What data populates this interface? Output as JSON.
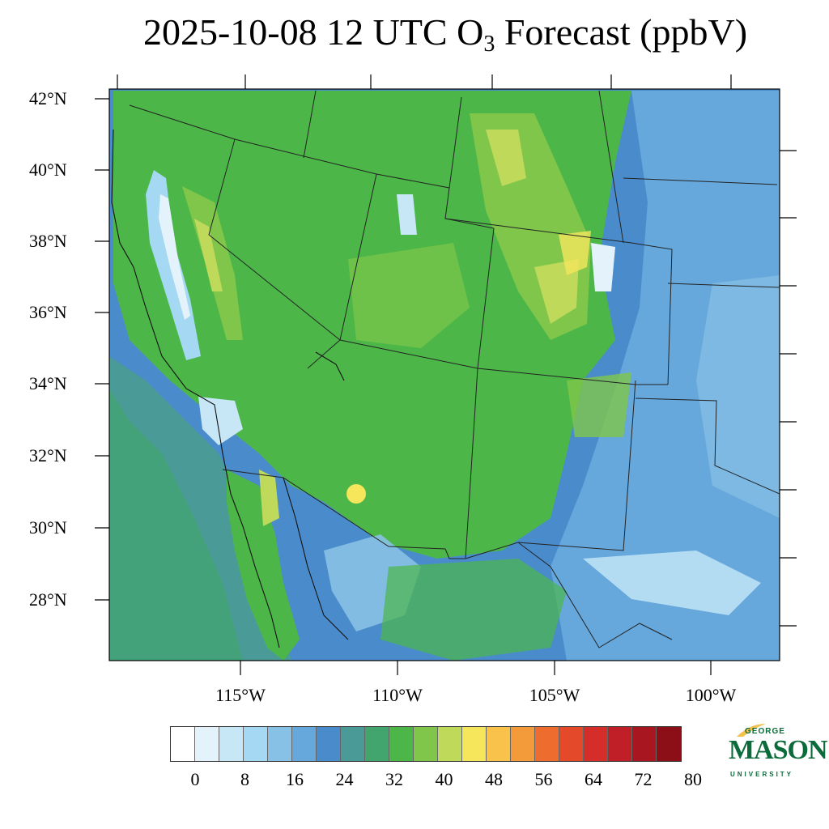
{
  "title": {
    "prefix": "2025-10-08 12 UTC O",
    "subscript": "3",
    "suffix": " Forecast (ppbV)"
  },
  "map": {
    "latitude_labels": [
      "42°N",
      "40°N",
      "38°N",
      "36°N",
      "34°N",
      "32°N",
      "30°N",
      "28°N"
    ],
    "longitude_labels": [
      "115°W",
      "110°W",
      "105°W",
      "100°W"
    ]
  },
  "colorbar": {
    "labels": [
      "0",
      "8",
      "16",
      "24",
      "32",
      "40",
      "48",
      "56",
      "64",
      "72",
      "80"
    ],
    "colors": [
      "#ffffff",
      "#e4f3fb",
      "#c7e7f7",
      "#a5d9f3",
      "#88c1e6",
      "#66a8dc",
      "#4a8ccb",
      "#4a9b98",
      "#41a56d",
      "#4cb748",
      "#7fc64a",
      "#bfd95a",
      "#f5e65c",
      "#f9c24b",
      "#f39a3a",
      "#ee6c2d",
      "#e44a2a",
      "#d52d2a",
      "#c01f28",
      "#a8161f",
      "#8c0e17"
    ]
  },
  "logo": {
    "line1": "GEORGE",
    "line2": "MASON",
    "line3": "UNIVERSITY",
    "colors": {
      "green": "#0b6b3a",
      "gold": "#f2c14e"
    }
  }
}
